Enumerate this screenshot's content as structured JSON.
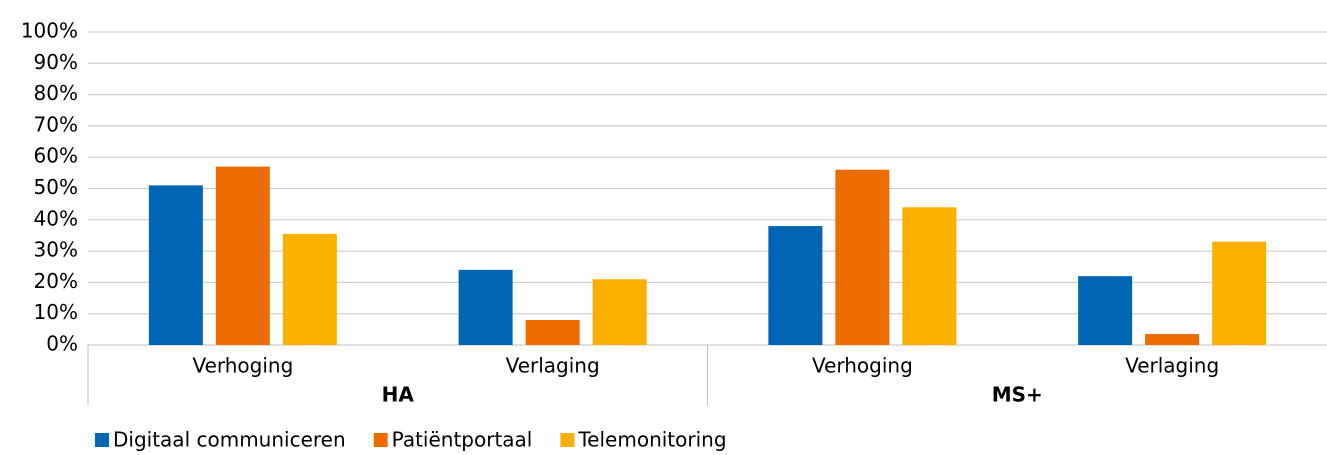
{
  "chart_data": {
    "type": "bar",
    "categories": [
      "Verhoging",
      "Verlaging",
      "Verhoging",
      "Verlaging"
    ],
    "groups": [
      "HA",
      "MS+"
    ],
    "series": [
      {
        "name": "Digitaal communiceren",
        "color": "#0066b3",
        "values": [
          51,
          24,
          38,
          22
        ]
      },
      {
        "name": "Patiëntportaal",
        "color": "#ec6c00",
        "values": [
          57,
          8,
          56,
          3.5
        ]
      },
      {
        "name": "Telemonitoring",
        "color": "#f9b000",
        "values": [
          35.5,
          21,
          44,
          33
        ]
      }
    ],
    "ylim": [
      0,
      100
    ],
    "yticks": [
      {
        "value": 0,
        "label": "0%"
      },
      {
        "value": 10,
        "label": "10%"
      },
      {
        "value": 20,
        "label": "20%"
      },
      {
        "value": 30,
        "label": "30%"
      },
      {
        "value": 40,
        "label": "40%"
      },
      {
        "value": 50,
        "label": "50%"
      },
      {
        "value": 60,
        "label": "60%"
      },
      {
        "value": 70,
        "label": "70%"
      },
      {
        "value": 80,
        "label": "80%"
      },
      {
        "value": 90,
        "label": "90%"
      },
      {
        "value": 100,
        "label": "100%"
      }
    ],
    "grid": true,
    "legend": "bottom-left"
  }
}
